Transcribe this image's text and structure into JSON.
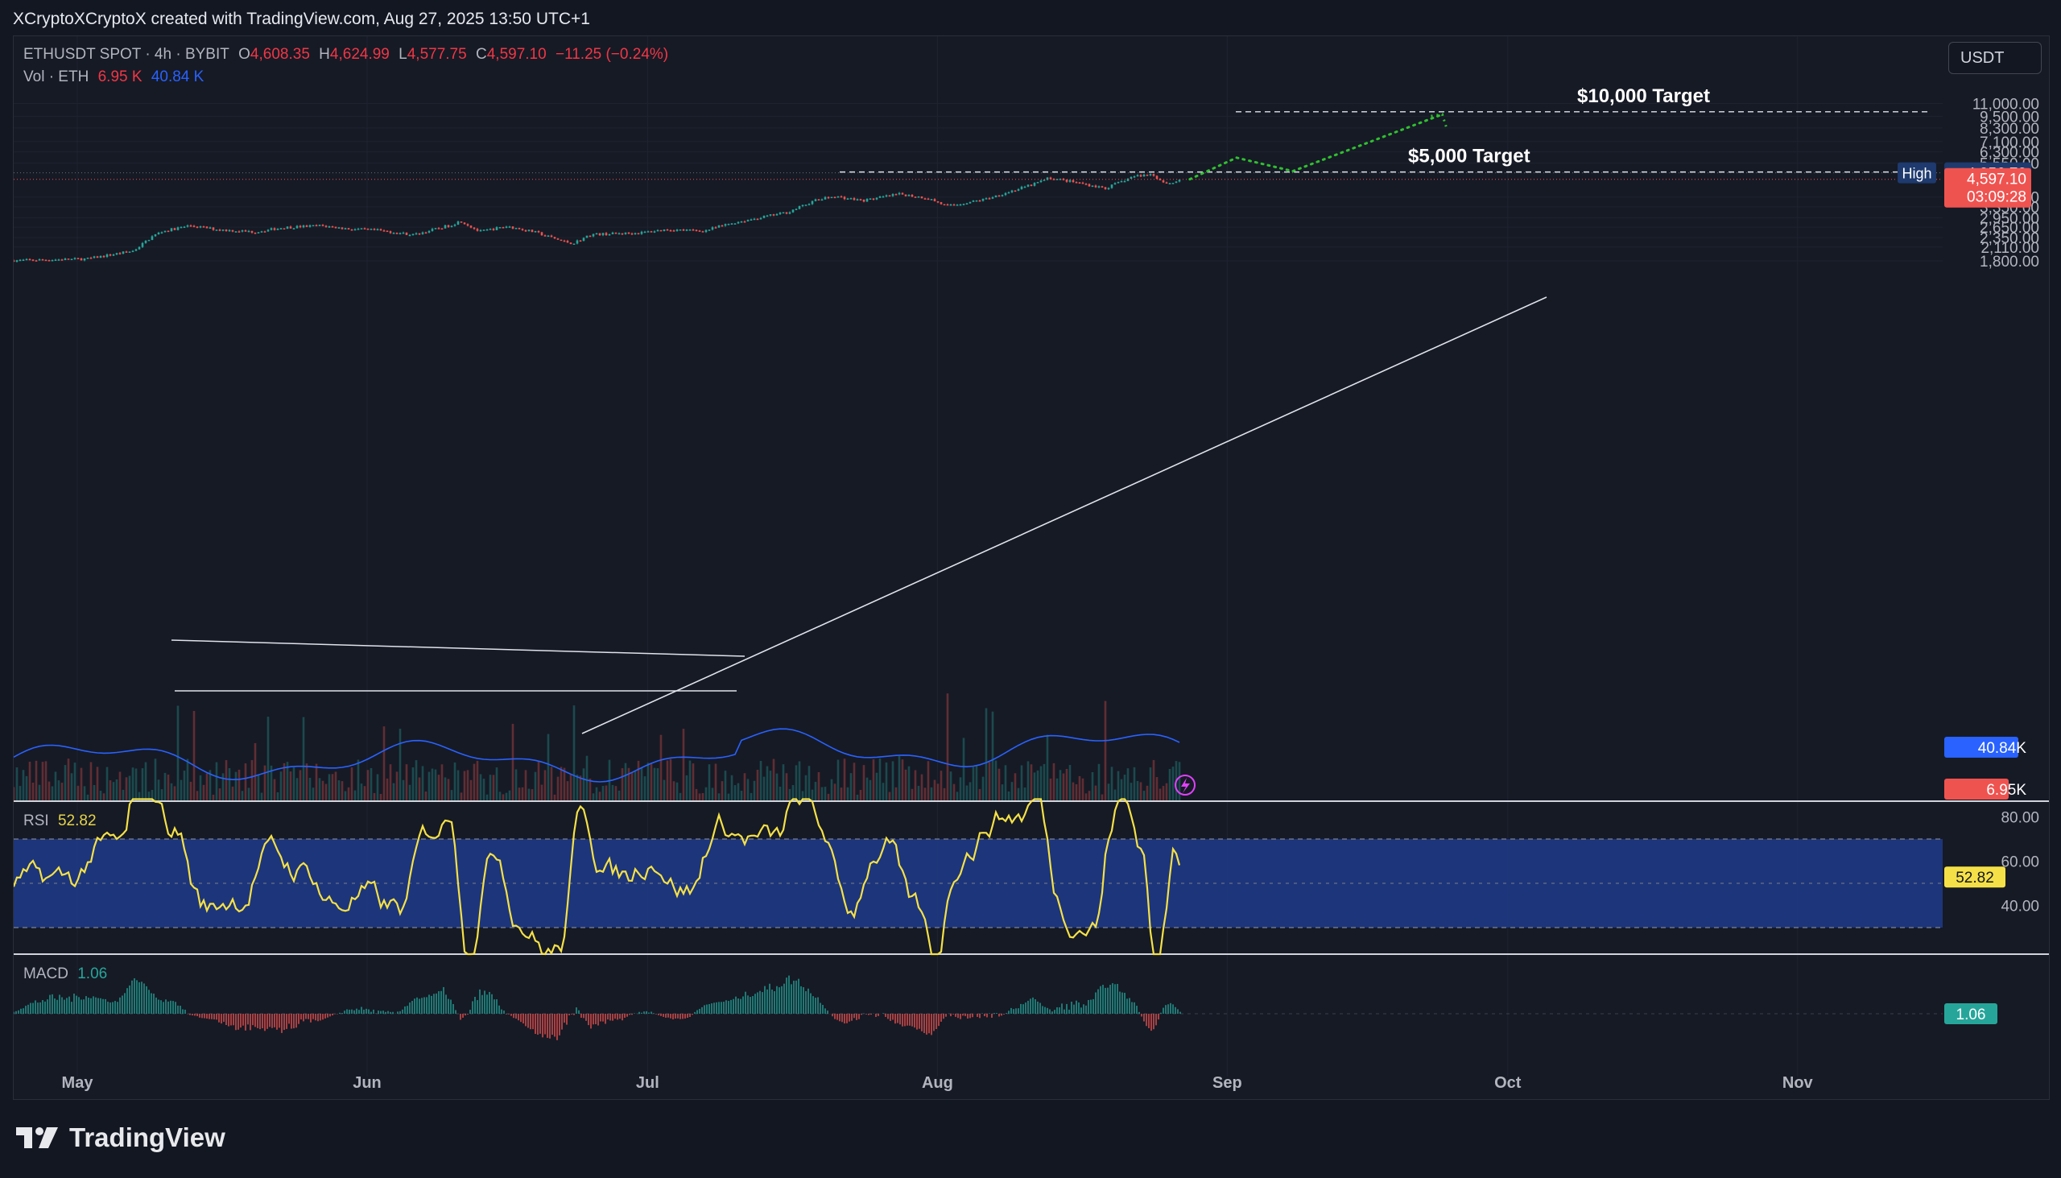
{
  "header": {
    "caption": "XCryptoXCryptoX created with TradingView.com, Aug 27, 2025 13:50 UTC+1",
    "currency_button": "USDT"
  },
  "legend": {
    "symbol": "ETHUSDT SPOT · 4h · BYBIT",
    "open_label": "O",
    "open": "4,608.35",
    "high_label": "H",
    "high": "4,624.99",
    "low_label": "L",
    "low": "4,577.75",
    "close_label": "C",
    "close": "4,597.10",
    "change": "−11.25 (−0.24%)",
    "vol_label": "Vol · ETH",
    "vol_value1": "6.95 K",
    "vol_value2": "40.84 K"
  },
  "rsi": {
    "label": "RSI",
    "value": "52.82"
  },
  "macd": {
    "label": "MACD",
    "value": "1.06"
  },
  "brand": {
    "name": "TradingView"
  },
  "colors": {
    "up": "#26a69a",
    "down": "#ef5350",
    "rsi": "#f5e147",
    "rsi_band": "#1f3b8a",
    "vol_ma": "#2962ff",
    "projection": "#2fc02f"
  },
  "chart_data": {
    "type": "candlestick",
    "symbol": "ETHUSDT",
    "timeframe": "4h",
    "exchange": "BYBIT",
    "scale": "log",
    "y_ticks": [
      "11,000.00",
      "9,500.00",
      "8,300.00",
      "7,100.00",
      "6,300.00",
      "5,550.00",
      "3,750.00",
      "3,350.00",
      "2,950.00",
      "2,650.00",
      "2,350.00",
      "2,110.00",
      "1,800.00"
    ],
    "y_tick_values": [
      11000,
      9500,
      8300,
      7100,
      6300,
      5550,
      3750,
      3350,
      2950,
      2650,
      2350,
      2110,
      1800
    ],
    "x_ticks": [
      "May",
      "Jun",
      "Jul",
      "Aug",
      "Sep",
      "Oct",
      "Nov"
    ],
    "x_tick_dates": [
      "2025-05-01",
      "2025-06-01",
      "2025-07-01",
      "2025-08-01",
      "2025-09-01",
      "2025-10-01",
      "2025-11-01"
    ],
    "price_path": [
      [
        "2025-04-22",
        1800
      ],
      [
        "2025-05-02",
        1840
      ],
      [
        "2025-05-07",
        2020
      ],
      [
        "2025-05-09",
        2380
      ],
      [
        "2025-05-10",
        2520
      ],
      [
        "2025-05-13",
        2700
      ],
      [
        "2025-05-16",
        2580
      ],
      [
        "2025-05-20",
        2510
      ],
      [
        "2025-05-23",
        2640
      ],
      [
        "2025-05-27",
        2700
      ],
      [
        "2025-05-30",
        2600
      ],
      [
        "2025-06-02",
        2560
      ],
      [
        "2025-06-06",
        2430
      ],
      [
        "2025-06-10",
        2720
      ],
      [
        "2025-06-11",
        2850
      ],
      [
        "2025-06-13",
        2520
      ],
      [
        "2025-06-16",
        2680
      ],
      [
        "2025-06-19",
        2500
      ],
      [
        "2025-06-22",
        2250
      ],
      [
        "2025-06-23",
        2200
      ],
      [
        "2025-06-25",
        2440
      ],
      [
        "2025-06-30",
        2480
      ],
      [
        "2025-07-03",
        2580
      ],
      [
        "2025-07-07",
        2540
      ],
      [
        "2025-07-10",
        2780
      ],
      [
        "2025-07-13",
        2960
      ],
      [
        "2025-07-16",
        3150
      ],
      [
        "2025-07-19",
        3620
      ],
      [
        "2025-07-21",
        3780
      ],
      [
        "2025-07-24",
        3600
      ],
      [
        "2025-07-28",
        3880
      ],
      [
        "2025-07-31",
        3700
      ],
      [
        "2025-08-02",
        3380
      ],
      [
        "2025-08-06",
        3650
      ],
      [
        "2025-08-08",
        3900
      ],
      [
        "2025-08-11",
        4300
      ],
      [
        "2025-08-13",
        4680
      ],
      [
        "2025-08-16",
        4420
      ],
      [
        "2025-08-19",
        4150
      ],
      [
        "2025-08-22",
        4760
      ],
      [
        "2025-08-24",
        4880
      ],
      [
        "2025-08-25",
        4480
      ],
      [
        "2025-08-26",
        4380
      ],
      [
        "2025-08-27",
        4597
      ]
    ],
    "last_price": "4,597.10",
    "countdown": "03:09:28",
    "high_label": "High",
    "high_value": "4,956.72",
    "vol_ma_value": "40.84K",
    "vol_value": "6.95K",
    "annotations": [
      {
        "text": "$5,000 Target",
        "price": 5000
      },
      {
        "text": "$10,000 Target",
        "price": 10000
      }
    ],
    "projection": [
      [
        "2025-08-28",
        4600
      ],
      [
        "2025-09-02",
        5900
      ],
      [
        "2025-09-08",
        5050
      ],
      [
        "2025-09-24",
        9700
      ]
    ],
    "rsi": {
      "label": "RSI",
      "value": "52.82",
      "band": [
        30,
        70
      ],
      "mid": 50,
      "ticks": [
        "80.00",
        "60.00",
        "40.00"
      ],
      "tick_values": [
        80,
        60,
        40
      ]
    },
    "macd": {
      "label": "MACD",
      "value": "1.06"
    }
  }
}
